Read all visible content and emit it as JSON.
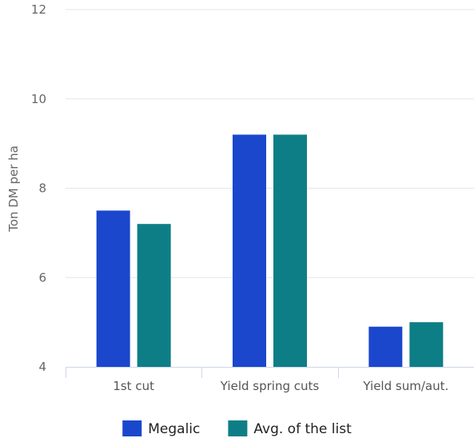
{
  "chart_data": {
    "type": "bar",
    "categories": [
      "1st cut",
      "Yield spring cuts",
      "Yield sum/aut."
    ],
    "series": [
      {
        "name": "Megalic",
        "values": [
          7.5,
          9.2,
          4.9
        ],
        "color": "#1a47cc"
      },
      {
        "name": "Avg. of the list",
        "values": [
          7.2,
          9.2,
          5.0
        ],
        "color": "#0e7e86"
      }
    ],
    "xlabel": "",
    "ylabel": "Ton DM per ha",
    "ylim": [
      4,
      12
    ],
    "yticks": [
      4,
      6,
      8,
      10,
      12
    ],
    "grid": true,
    "legend_position": "bottom-center",
    "colors": {
      "grid": "#e6e6e6",
      "axis": "#ccd6eb",
      "text": "#666666"
    }
  }
}
